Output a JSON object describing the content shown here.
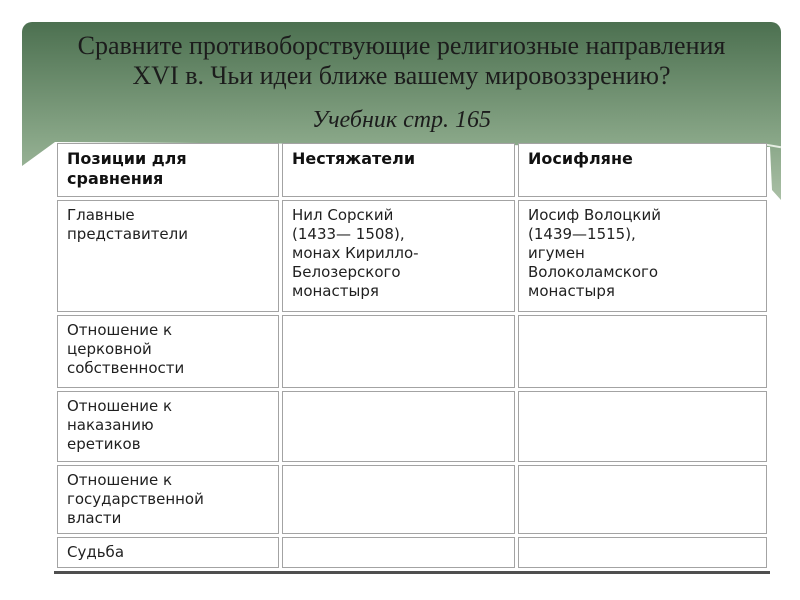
{
  "slide": {
    "title": "Сравните противоборствующие религиозные направления\nXVI в. Чьи идеи ближе вашему мировоззрению?",
    "subtitle": "Учебник стр. 165"
  },
  "table": {
    "headers": [
      "Позиции для\nсравнения",
      "Нестяжатели",
      "Иосифляне"
    ],
    "rows": [
      [
        "Главные\nпредставители",
        "Нил Сорский\n(1433— 1508),\nмонах Кирилло-\nБелозерского\nмонастыря",
        "Иосиф Волоцкий\n(1439—1515),\nигумен\nВолоколамского\nмонастыря"
      ],
      [
        "Отношение к\nцерковной\nсобственности",
        "",
        ""
      ],
      [
        "Отношение к\nнаказанию\nеретиков",
        "",
        ""
      ],
      [
        "Отношение к\nгосударственной\nвласти",
        "",
        ""
      ],
      [
        "Судьба",
        "",
        ""
      ]
    ]
  },
  "colors": {
    "band_gradient_top": "#4c7050",
    "band_gradient_bottom": "#bccdb6",
    "cell_border": "#a3a3a3",
    "table_bottom_rule": "#4f4f4f",
    "text": "#1c1c1c"
  }
}
